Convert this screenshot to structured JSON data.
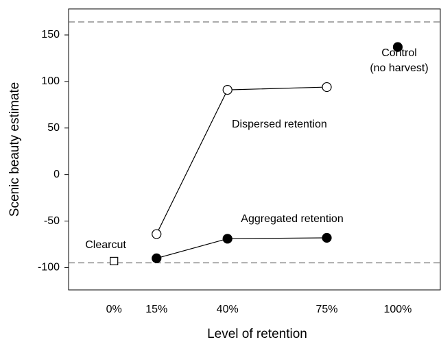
{
  "chart_data": {
    "type": "line",
    "xlabel": "Level of retention",
    "ylabel": "Scenic beauty estimate",
    "xlim": [
      -16,
      115
    ],
    "ylim": [
      -124,
      178
    ],
    "xticks": [
      {
        "value": 0,
        "label": "0%"
      },
      {
        "value": 15,
        "label": "15%"
      },
      {
        "value": 40,
        "label": "40%"
      },
      {
        "value": 75,
        "label": "75%"
      },
      {
        "value": 100,
        "label": "100%"
      }
    ],
    "yticks": [
      -100,
      -50,
      0,
      50,
      100,
      150
    ],
    "reference_lines": [
      164,
      -95
    ],
    "series": [
      {
        "name": "Dispersed retention",
        "color": "#000000",
        "marker": "circle",
        "marker_fill": "#ffffff",
        "connected": true,
        "x": [
          15,
          40,
          75
        ],
        "values": [
          -64,
          91,
          94
        ]
      },
      {
        "name": "Aggregated retention",
        "color": "#000000",
        "marker": "circle",
        "marker_fill": "#000000",
        "connected": true,
        "x": [
          15,
          40,
          75
        ],
        "values": [
          -90,
          -69,
          -68
        ]
      },
      {
        "name": "Clearcut",
        "color": "#000000",
        "marker": "square",
        "marker_fill": "#ffffff",
        "connected": false,
        "x": [
          0
        ],
        "values": [
          -93
        ]
      },
      {
        "name": "Control",
        "color": "#000000",
        "marker": "circle",
        "marker_fill": "#000000",
        "connected": false,
        "x": [
          100
        ],
        "values": [
          137
        ]
      }
    ],
    "annotations": [
      "(no harvest)"
    ]
  }
}
